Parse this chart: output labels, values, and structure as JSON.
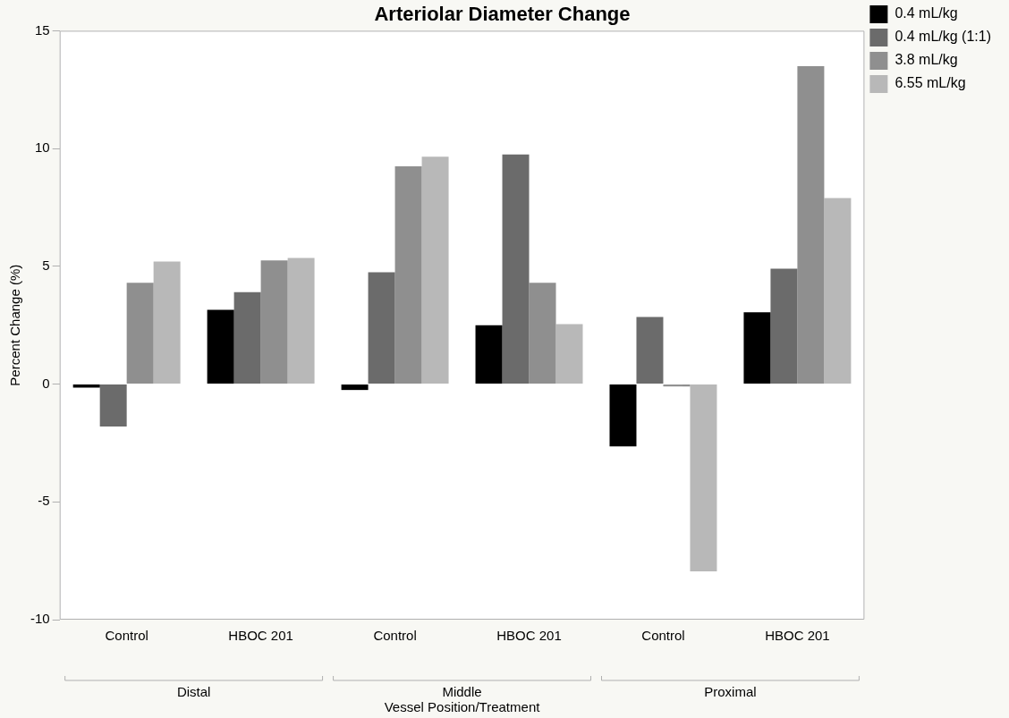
{
  "chart_data": {
    "type": "bar",
    "title": "Arteriolar Diameter Change",
    "xlabel": "Vessel Position/Treatment",
    "ylabel": "Percent Change (%)",
    "categories": [
      "Control",
      "HBOC 201",
      "Control",
      "HBOC 201",
      "Control",
      "HBOC 201"
    ],
    "annotations": [
      "Distal",
      "Middle",
      "Proximal"
    ],
    "series": [
      {
        "name": "0.4 mL/kg",
        "color": "#000000",
        "values": [
          -0.15,
          3.15,
          -0.25,
          2.5,
          -2.65,
          3.05
        ]
      },
      {
        "name": "0.4 mL/kg (1:1)",
        "color": "#6b6b6b",
        "values": [
          -1.8,
          3.9,
          4.75,
          9.75,
          2.85,
          4.9
        ]
      },
      {
        "name": "3.8 mL/kg",
        "color": "#8f8f8f",
        "values": [
          4.3,
          5.25,
          9.25,
          4.3,
          -0.1,
          13.5
        ]
      },
      {
        "name": "6.55 mL/kg",
        "color": "#b8b8b8",
        "values": [
          5.2,
          5.35,
          9.65,
          2.55,
          -7.95,
          7.9
        ]
      }
    ],
    "ylim": [
      -10,
      15
    ],
    "yticks": [
      -10,
      -5,
      0,
      5,
      10,
      15
    ],
    "grid": false,
    "legend": "top right"
  }
}
